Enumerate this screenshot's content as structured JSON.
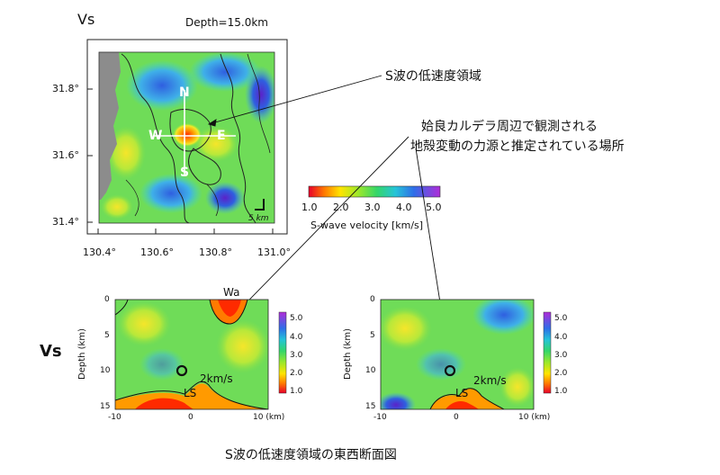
{
  "map": {
    "vs_label": "Vs",
    "depth_label": "Depth=15.0km",
    "lat_ticks": [
      "31.8°",
      "31.6°",
      "31.4°"
    ],
    "lon_ticks": [
      "130.4°",
      "130.6°",
      "130.8°",
      "131.0°"
    ],
    "compass": {
      "n": "N",
      "s": "S",
      "w": "W",
      "e": "E"
    },
    "scale_label": "5 km"
  },
  "colorbar": {
    "ticks": [
      "1.0",
      "2.0",
      "3.0",
      "4.0",
      "5.0"
    ],
    "title": "S-wave velocity [km/s]"
  },
  "annotations": {
    "low_velocity": "S波の低速度領域",
    "caldera_line1": "姶良カルデラ周辺で観測される",
    "caldera_line2": "地殻変動の力源と推定されている場所"
  },
  "sections": {
    "vs_label": "Vs",
    "depth_axis_label": "Depth (km)",
    "y_ticks": [
      "0",
      "5",
      "10",
      "15"
    ],
    "x_ticks": [
      "-10",
      "0",
      "10 (km)"
    ],
    "contour_label": "2km/s",
    "ls_label": "LS",
    "wa_label": "Wa",
    "cb_ticks": [
      "5.0",
      "4.0",
      "3.0",
      "2.0",
      "1.0"
    ]
  },
  "caption": "S波の低速度領域の東西断面図"
}
